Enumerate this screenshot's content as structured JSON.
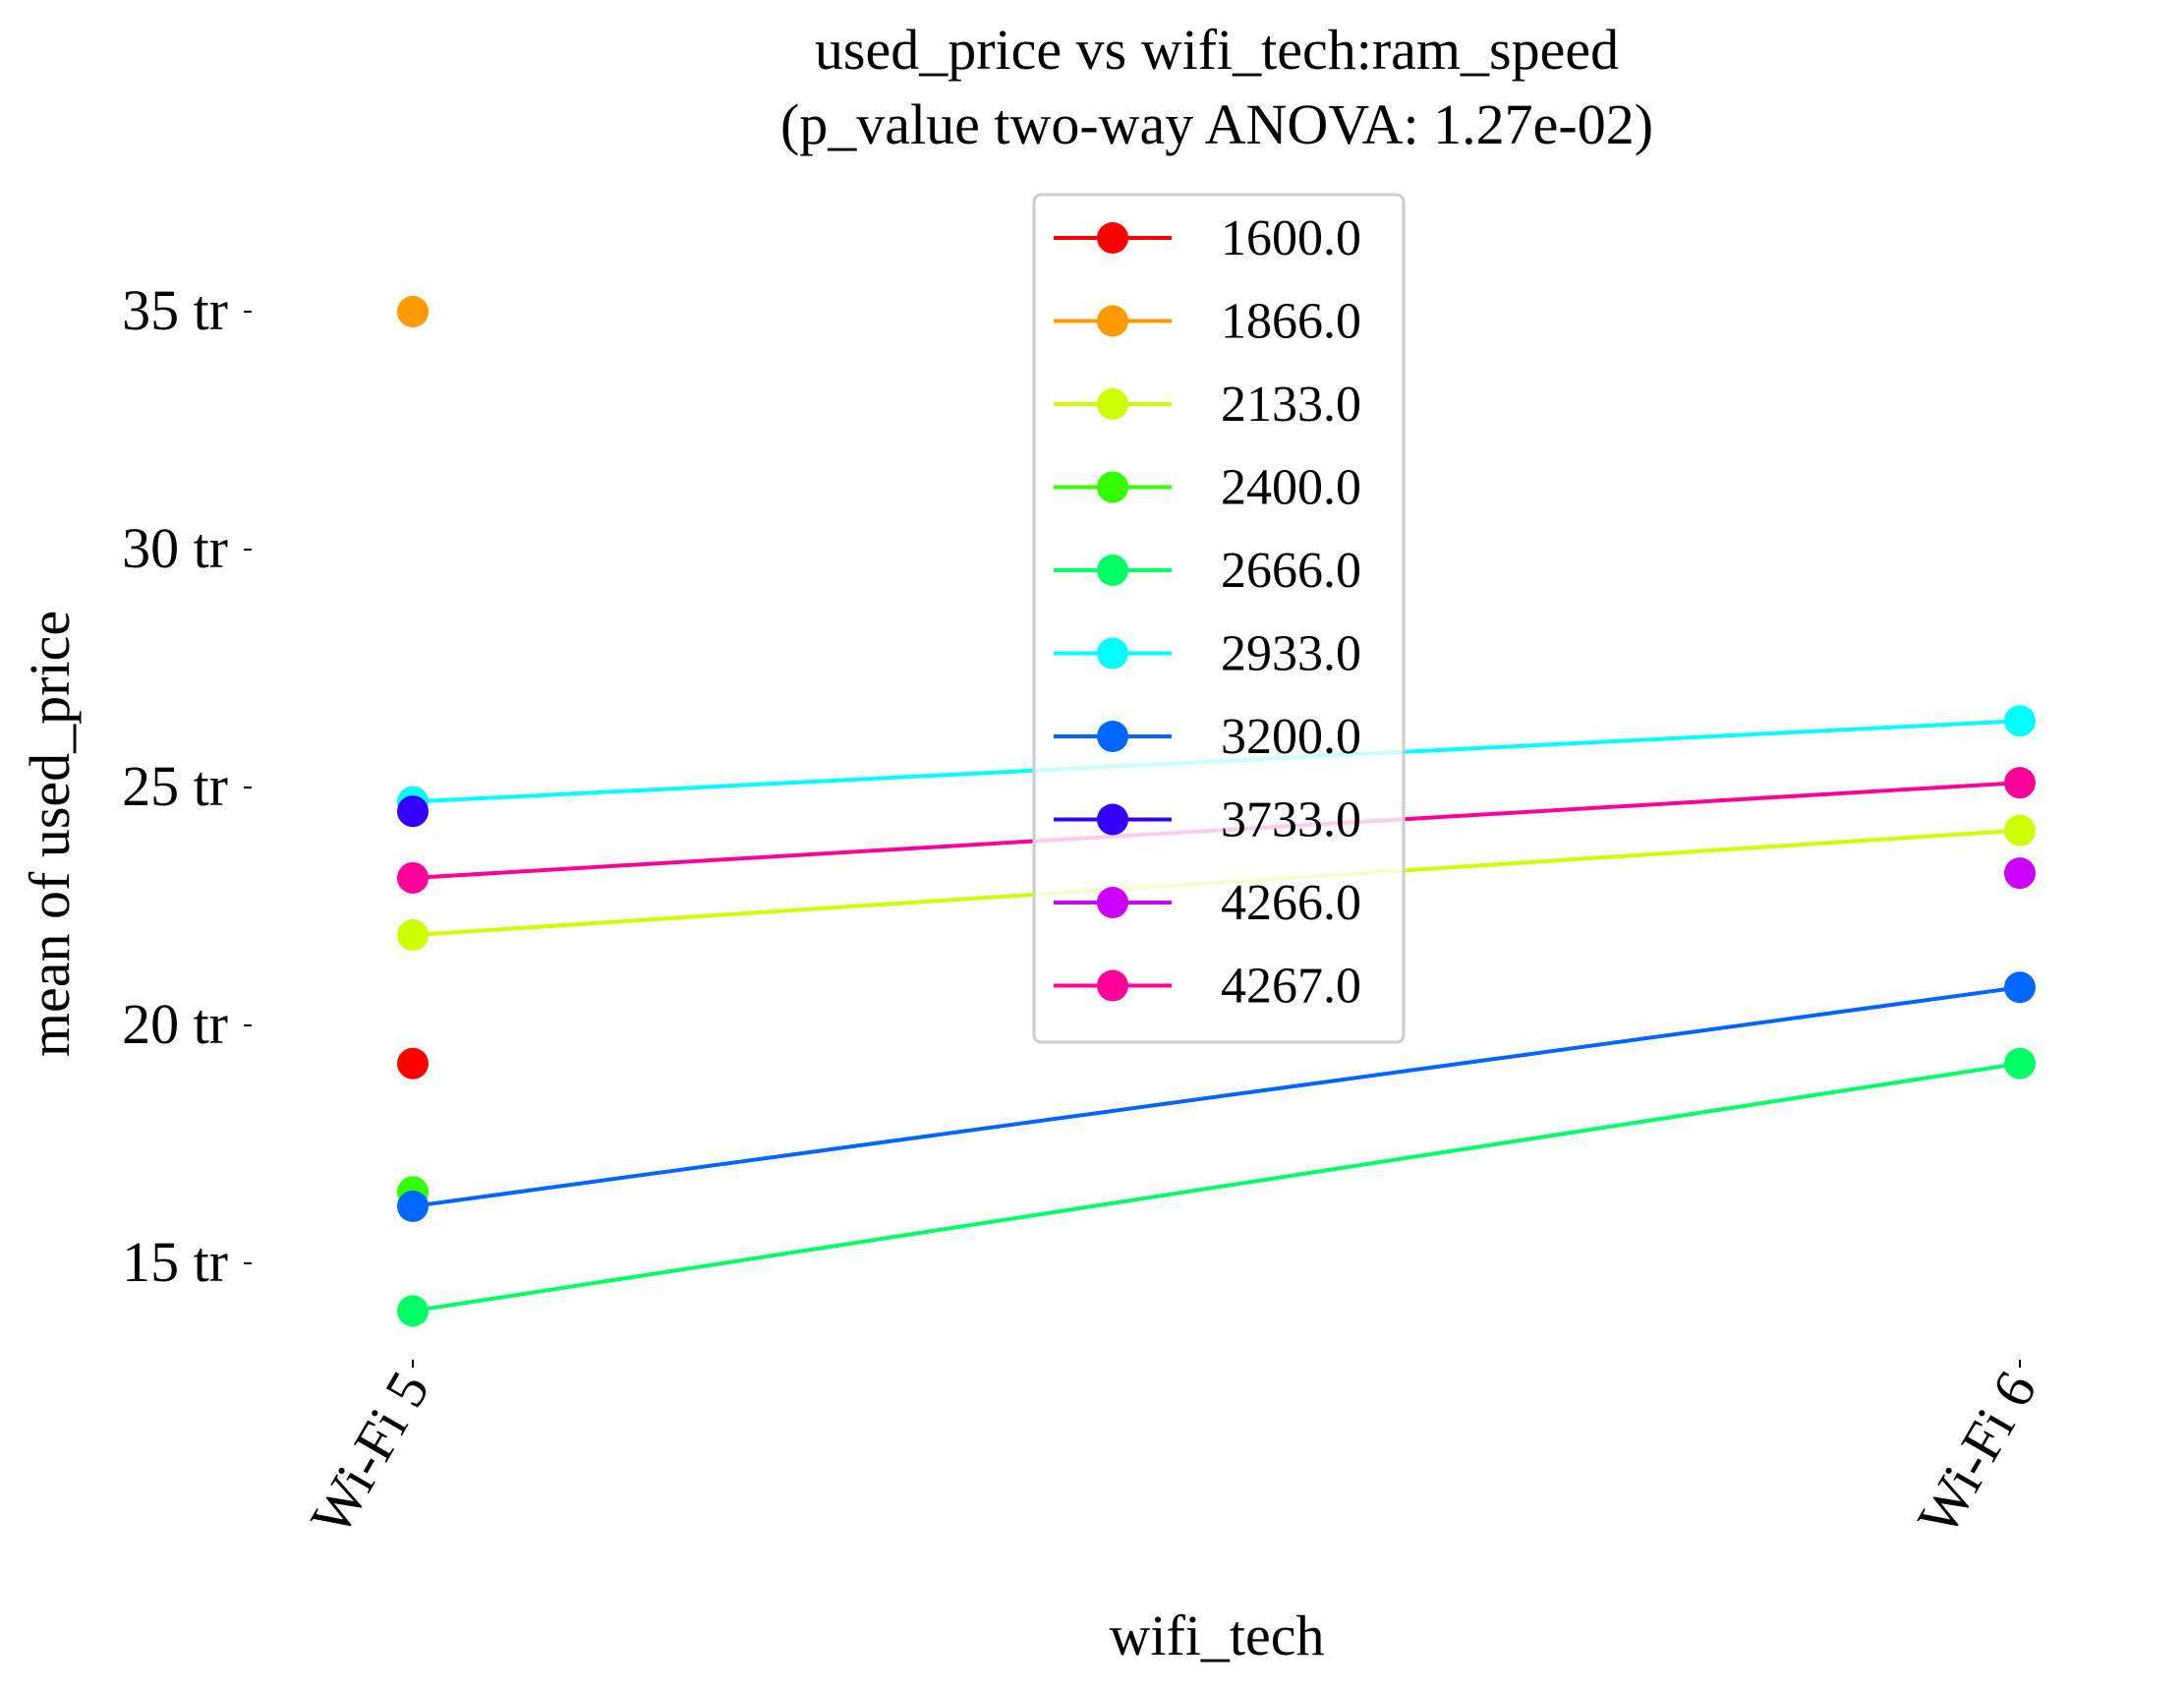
{
  "chart_data": {
    "type": "line",
    "title": "used_price vs wifi_tech:ram_speed",
    "subtitle": "(p_value two-way ANOVA: 1.27e-02)",
    "xlabel": "wifi_tech",
    "ylabel": "mean of used_price",
    "categories": [
      "Wi-Fi 5",
      "Wi-Fi 6"
    ],
    "ylim": [
      12,
      36.5
    ],
    "y_ticks": [
      15,
      20,
      25,
      30,
      35
    ],
    "y_tick_labels": [
      "15 tr",
      "20 tr",
      "25 tr",
      "30 tr",
      "35 tr"
    ],
    "grid": false,
    "legend_position": "top-center",
    "series": [
      {
        "name": "1600.0",
        "color": "#ff0000",
        "values": [
          19.2,
          null
        ]
      },
      {
        "name": "1866.0",
        "color": "#ff9900",
        "values": [
          35.0,
          null
        ]
      },
      {
        "name": "2133.0",
        "color": "#ccff00",
        "values": [
          21.9,
          24.1
        ]
      },
      {
        "name": "2400.0",
        "color": "#33ff00",
        "values": [
          16.5,
          null
        ]
      },
      {
        "name": "2666.0",
        "color": "#00ff66",
        "values": [
          14.0,
          19.2
        ]
      },
      {
        "name": "2933.0",
        "color": "#00ffff",
        "values": [
          24.7,
          26.4
        ]
      },
      {
        "name": "3200.0",
        "color": "#0066ff",
        "values": [
          16.2,
          20.8
        ]
      },
      {
        "name": "3733.0",
        "color": "#3300ff",
        "values": [
          24.5,
          null
        ]
      },
      {
        "name": "4266.0",
        "color": "#cc00ff",
        "values": [
          null,
          23.2
        ]
      },
      {
        "name": "4267.0",
        "color": "#ff0099",
        "values": [
          23.1,
          25.1
        ]
      }
    ]
  }
}
